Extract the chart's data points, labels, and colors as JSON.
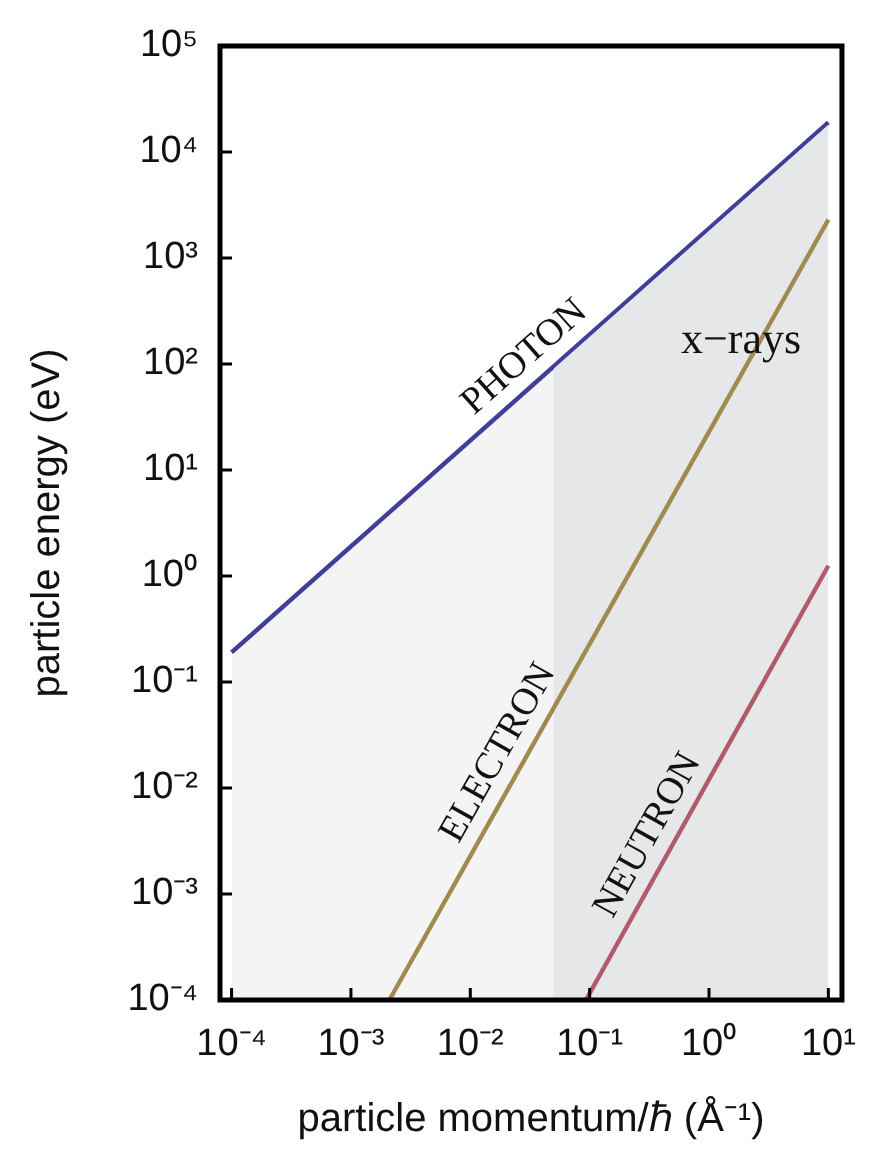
{
  "chart_data": {
    "type": "line",
    "xlabel": "particle momentum/ℏ (Å⁻¹)",
    "ylabel": "particle energy (eV)",
    "log": "xy",
    "xlim": [
      8e-05,
      13
    ],
    "ylim": [
      0.0001,
      100000
    ],
    "xticks": [
      {
        "value": 0.0001,
        "label": "10⁻⁴"
      },
      {
        "value": 0.001,
        "label": "10⁻³"
      },
      {
        "value": 0.01,
        "label": "10⁻²"
      },
      {
        "value": 0.1,
        "label": "10⁻¹"
      },
      {
        "value": 1,
        "label": "10⁰"
      },
      {
        "value": 10,
        "label": "10¹"
      }
    ],
    "yticks": [
      {
        "value": 0.0001,
        "label": "10⁻⁴"
      },
      {
        "value": 0.001,
        "label": "10⁻³"
      },
      {
        "value": 0.01,
        "label": "10⁻²"
      },
      {
        "value": 0.1,
        "label": "10⁻¹"
      },
      {
        "value": 1,
        "label": "10⁰"
      },
      {
        "value": 10,
        "label": "10¹"
      },
      {
        "value": 100,
        "label": "10²"
      },
      {
        "value": 1000,
        "label": "10³"
      },
      {
        "value": 10000,
        "label": "10⁴"
      },
      {
        "value": 100000,
        "label": "10⁵"
      }
    ],
    "series": [
      {
        "name": "PHOTON",
        "type": "area",
        "color": "#3f3f9a",
        "x": [
          0.0001,
          10
        ],
        "values": [
          0.19,
          19000
        ]
      },
      {
        "name": "ELECTRON",
        "color": "#a08a50",
        "x": [
          0.0021,
          10
        ],
        "values": [
          0.0001,
          2300
        ]
      },
      {
        "name": "NEUTRON",
        "color": "#b05a6a",
        "x": [
          0.093,
          10
        ],
        "values": [
          0.0001,
          1.25
        ]
      }
    ],
    "bands": [
      {
        "axis": "x",
        "from": 0.05,
        "to": 10,
        "label": "x−rays",
        "color": "#e6e7e9"
      }
    ],
    "legend": false
  }
}
